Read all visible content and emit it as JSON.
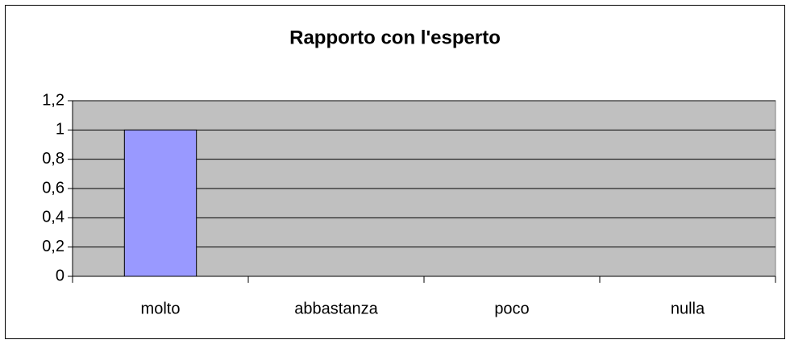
{
  "chart_data": {
    "type": "bar",
    "title": "Rapporto con l'esperto",
    "categories": [
      "molto",
      "abbastanza",
      "poco",
      "nulla"
    ],
    "values": [
      1,
      0,
      0,
      0
    ],
    "color": "#9999ff",
    "ylim": [
      0,
      1.2
    ],
    "yticks": [
      0,
      {
        "value": 0.2,
        "label": "0,2"
      },
      {
        "value": 0.4,
        "label": "0,4"
      },
      {
        "value": 0.6,
        "label": "0,6"
      },
      {
        "value": 0.8,
        "label": "0,8"
      },
      1,
      {
        "value": 1.2,
        "label": "1,2"
      }
    ],
    "grid": true
  }
}
